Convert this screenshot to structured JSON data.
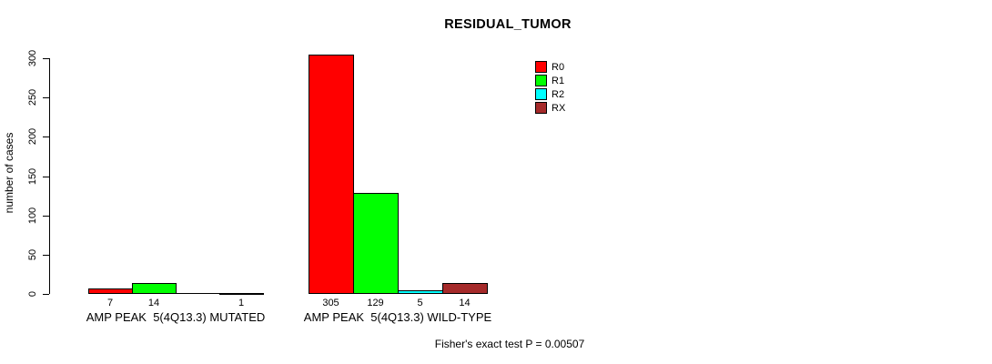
{
  "title": "RESIDUAL_TUMOR",
  "y_axis": {
    "label": "number of cases",
    "ticks": [
      "0",
      "50",
      "100",
      "150",
      "200",
      "250",
      "300"
    ]
  },
  "legend": {
    "entries": [
      {
        "label": "R0",
        "color": "#FF0000"
      },
      {
        "label": "R1",
        "color": "#00FF00"
      },
      {
        "label": "R2",
        "color": "#00FFFF"
      },
      {
        "label": "RX",
        "color": "#A52A2A"
      }
    ]
  },
  "footer": "Fisher's exact test P = 0.00507",
  "chart_data": {
    "type": "bar",
    "title": "RESIDUAL_TUMOR",
    "xlabel": "",
    "ylabel": "number of cases",
    "ylim": [
      0,
      300
    ],
    "grid": false,
    "legend_position": "top-right",
    "categories": [
      "AMP PEAK  5(4Q13.3) MUTATED",
      "AMP PEAK  5(4Q13.3) WILD-TYPE"
    ],
    "series": [
      {
        "name": "R0",
        "color": "#FF0000",
        "values": [
          7,
          305
        ]
      },
      {
        "name": "R1",
        "color": "#00FF00",
        "values": [
          14,
          129
        ]
      },
      {
        "name": "R2",
        "color": "#00FFFF",
        "values": [
          0,
          5
        ]
      },
      {
        "name": "RX",
        "color": "#A52A2A",
        "values": [
          1,
          14
        ]
      }
    ],
    "bar_value_labels": [
      [
        "7",
        "14",
        "",
        "1"
      ],
      [
        "305",
        "129",
        "5",
        "14"
      ]
    ],
    "annotation": "Fisher's exact test P = 0.00507"
  }
}
